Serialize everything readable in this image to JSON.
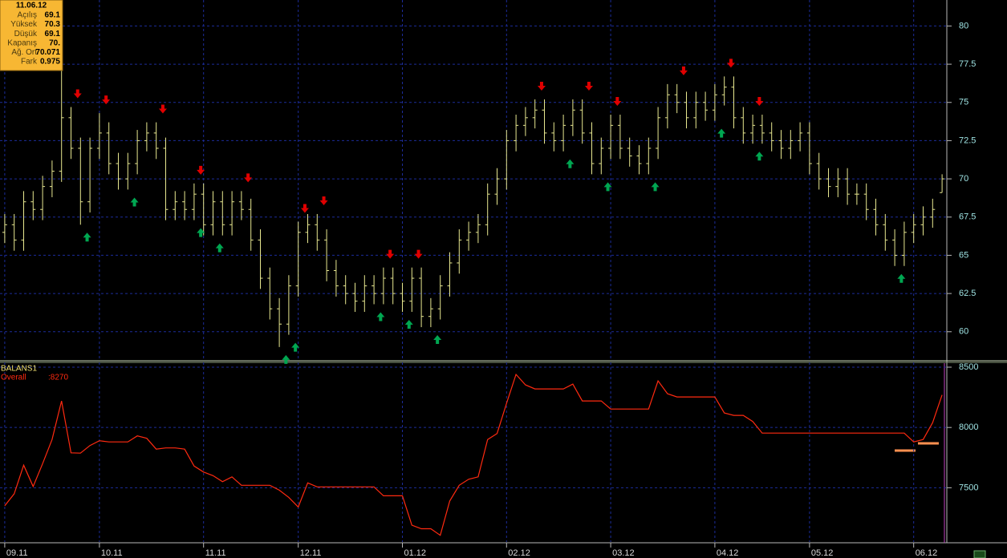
{
  "info_box": {
    "date": "11.06.12",
    "rows": [
      {
        "label": "Açılış",
        "value": "69.1"
      },
      {
        "label": "Yüksek",
        "value": "70.3"
      },
      {
        "label": "Düşük",
        "value": "69.1"
      },
      {
        "label": "Kapanış",
        "value": "70."
      },
      {
        "label": "Ağ. Ort",
        "value": "70.071"
      },
      {
        "label": "Fark",
        "value": "0.975"
      }
    ]
  },
  "chart_data": [
    {
      "type": "ohlc",
      "color": "#e8e890",
      "grid": true,
      "xlim": [
        -0.5,
        99.5
      ],
      "ylim": [
        58.1,
        81.7
      ],
      "yticks": [
        60,
        62.5,
        65,
        67.5,
        70,
        72.5,
        75,
        77.5,
        80
      ],
      "open": [
        66.5,
        67,
        66,
        68.5,
        68,
        69.5,
        70.5,
        74,
        72,
        68.5,
        72,
        73,
        71,
        70,
        71,
        72.5,
        73,
        72,
        68,
        68.5,
        68,
        69,
        67,
        68.5,
        67,
        68.5,
        68,
        66,
        63.5,
        61.5,
        60.5,
        63,
        66.5,
        67,
        66,
        64,
        63,
        62.5,
        62,
        63,
        62.5,
        63.5,
        62.5,
        62,
        63.5,
        61,
        61.5,
        63,
        64.5,
        66,
        66.5,
        67,
        69,
        70,
        72.5,
        73.5,
        74,
        74.5,
        73,
        72.5,
        73.5,
        74.5,
        73,
        71,
        72,
        73.5,
        72,
        71.5,
        71,
        72,
        74,
        75.5,
        75,
        74,
        75,
        74.5,
        75.5,
        76,
        74,
        73,
        73.5,
        73,
        72.5,
        72,
        72.5,
        73,
        71,
        70,
        69.5,
        70,
        69,
        69,
        68,
        67,
        66,
        65,
        66.5,
        67,
        67.5,
        69.1
      ],
      "high": [
        67.7,
        67.7,
        69.2,
        69.2,
        70.2,
        71.2,
        77.5,
        74.7,
        72.7,
        72.7,
        74.3,
        73.7,
        71.7,
        71.7,
        73.2,
        73.7,
        73.7,
        72.7,
        69.2,
        69.2,
        69.7,
        69.7,
        69.2,
        69.2,
        69.2,
        69.2,
        68.7,
        66.7,
        64.2,
        62.2,
        63.7,
        67.2,
        67.7,
        67.7,
        66.7,
        64.7,
        63.7,
        63.2,
        63.7,
        63.7,
        64.2,
        64.2,
        63.2,
        64.2,
        64.2,
        62.2,
        63.7,
        65.2,
        66.7,
        67.2,
        67.7,
        69.7,
        70.7,
        73.2,
        74.2,
        74.7,
        75.2,
        75.2,
        73.7,
        74.2,
        75.2,
        75.2,
        73.7,
        72.7,
        74.2,
        74.2,
        72.7,
        72.2,
        72.7,
        74.7,
        76.2,
        76.2,
        75.7,
        75.7,
        75.7,
        76.2,
        76.7,
        76.7,
        74.7,
        74.2,
        74.2,
        73.7,
        73.2,
        73.2,
        73.7,
        73.7,
        71.7,
        70.7,
        70.7,
        70.7,
        69.7,
        69.7,
        68.7,
        67.7,
        66.7,
        67.2,
        67.7,
        68.2,
        68.7,
        70.3
      ],
      "low": [
        65.8,
        65.3,
        65.3,
        67.3,
        67.3,
        68.8,
        69.8,
        71.3,
        67,
        67.8,
        71.3,
        70.3,
        69.3,
        69.3,
        70.3,
        71.8,
        71.3,
        67.3,
        67.3,
        67.3,
        67.3,
        66.3,
        66.3,
        66.3,
        66.3,
        67.3,
        65.3,
        62.8,
        60.8,
        59,
        59.8,
        62.3,
        65.8,
        65.3,
        63.3,
        62.3,
        61.8,
        61.3,
        61.3,
        61.8,
        61.8,
        61.8,
        61.3,
        61.3,
        60.3,
        60.3,
        60.8,
        62.3,
        63.8,
        65.3,
        65.8,
        66.3,
        68.3,
        69.3,
        71.8,
        72.8,
        73.3,
        72.3,
        71.8,
        71.8,
        72.8,
        72.3,
        70.3,
        70.3,
        71.3,
        71.3,
        70.8,
        70.3,
        70.3,
        71.3,
        73.3,
        74.3,
        73.3,
        73.3,
        73.8,
        73.8,
        74.8,
        73.3,
        72.3,
        72.3,
        72.3,
        71.8,
        71.3,
        71.3,
        71.8,
        70.3,
        69.3,
        68.8,
        68.8,
        68.3,
        68.3,
        67.3,
        66.3,
        65.3,
        64.3,
        64.3,
        65.8,
        66.3,
        66.8,
        69.1
      ],
      "close": [
        67,
        66,
        68.5,
        68,
        69.5,
        70.5,
        74,
        72,
        68.5,
        72,
        73,
        71,
        70,
        71,
        72.5,
        73,
        72,
        68,
        68.5,
        68,
        69,
        67,
        68.5,
        67,
        68.5,
        68,
        66,
        63.5,
        61.5,
        60.5,
        63,
        66.5,
        67,
        66,
        64,
        63,
        62.5,
        62,
        63,
        62.5,
        63.5,
        62.5,
        62,
        63.5,
        61,
        61.5,
        63,
        64.5,
        66,
        66.5,
        67,
        69,
        70,
        72.5,
        73.5,
        74,
        74.5,
        73,
        72.5,
        73.5,
        74.5,
        73,
        71,
        72,
        73.5,
        72,
        71.5,
        71,
        72,
        74,
        75.5,
        75,
        74,
        75,
        74.5,
        75.5,
        76,
        74,
        73,
        73.5,
        73,
        72.5,
        72,
        72.5,
        73,
        71,
        70,
        69.5,
        70,
        69,
        69,
        68,
        67,
        66,
        65,
        66.5,
        67,
        67.5,
        68,
        70
      ],
      "signals": {
        "sell": {
          "color": "#e00000",
          "bars": [
            7,
            10,
            16,
            20,
            25,
            31,
            33,
            40,
            43,
            56,
            61,
            64,
            71,
            76,
            79
          ]
        },
        "buy": {
          "color": "#00a651",
          "bars": [
            8,
            13,
            20,
            22,
            29,
            30,
            39,
            42,
            45,
            59,
            63,
            68,
            75,
            79,
            94
          ]
        }
      }
    },
    {
      "type": "line",
      "title": "BALANS1",
      "grid": true,
      "xlim": [
        -0.5,
        99.5
      ],
      "xticks": [
        {
          "value": 0,
          "label": "09.11"
        },
        {
          "value": 10,
          "label": "10.11"
        },
        {
          "value": 21,
          "label": "11.11"
        },
        {
          "value": 31,
          "label": "12.11"
        },
        {
          "value": 42,
          "label": "01.12"
        },
        {
          "value": 53,
          "label": "02.12"
        },
        {
          "value": 64,
          "label": "03.12"
        },
        {
          "value": 75,
          "label": "04.12"
        },
        {
          "value": 85,
          "label": "05.12"
        },
        {
          "value": 96,
          "label": "06.12"
        }
      ],
      "ylim": [
        7050,
        8540
      ],
      "yticks": [
        7500,
        8000,
        8500
      ],
      "series": [
        {
          "name": "Overall",
          "color": "#ff2a10",
          "value_label": ":8270",
          "values": [
            7350,
            7450,
            7687,
            7510,
            7700,
            7900,
            8220,
            7790,
            7787,
            7850,
            7890,
            7880,
            7880,
            7880,
            7930,
            7910,
            7820,
            7830,
            7830,
            7820,
            7680,
            7630,
            7600,
            7550,
            7590,
            7520,
            7520,
            7520,
            7520,
            7480,
            7420,
            7340,
            7540,
            7507,
            7507,
            7507,
            7507,
            7507,
            7507,
            7507,
            7433,
            7433,
            7433,
            7190,
            7160,
            7160,
            7105,
            7390,
            7520,
            7570,
            7590,
            7900,
            7950,
            8200,
            8440,
            8353,
            8320,
            8320,
            8320,
            8320,
            8360,
            8220,
            8220,
            8220,
            8153,
            8153,
            8153,
            8153,
            8153,
            8387,
            8280,
            8253,
            8253,
            8253,
            8253,
            8253,
            8120,
            8100,
            8100,
            8050,
            7953,
            7953,
            7953,
            7953,
            7953,
            7953,
            7953,
            7953,
            7953,
            7953,
            7953,
            7953,
            7953,
            7953,
            7953,
            7953,
            7880,
            7900,
            8040,
            8270
          ]
        }
      ]
    }
  ]
}
